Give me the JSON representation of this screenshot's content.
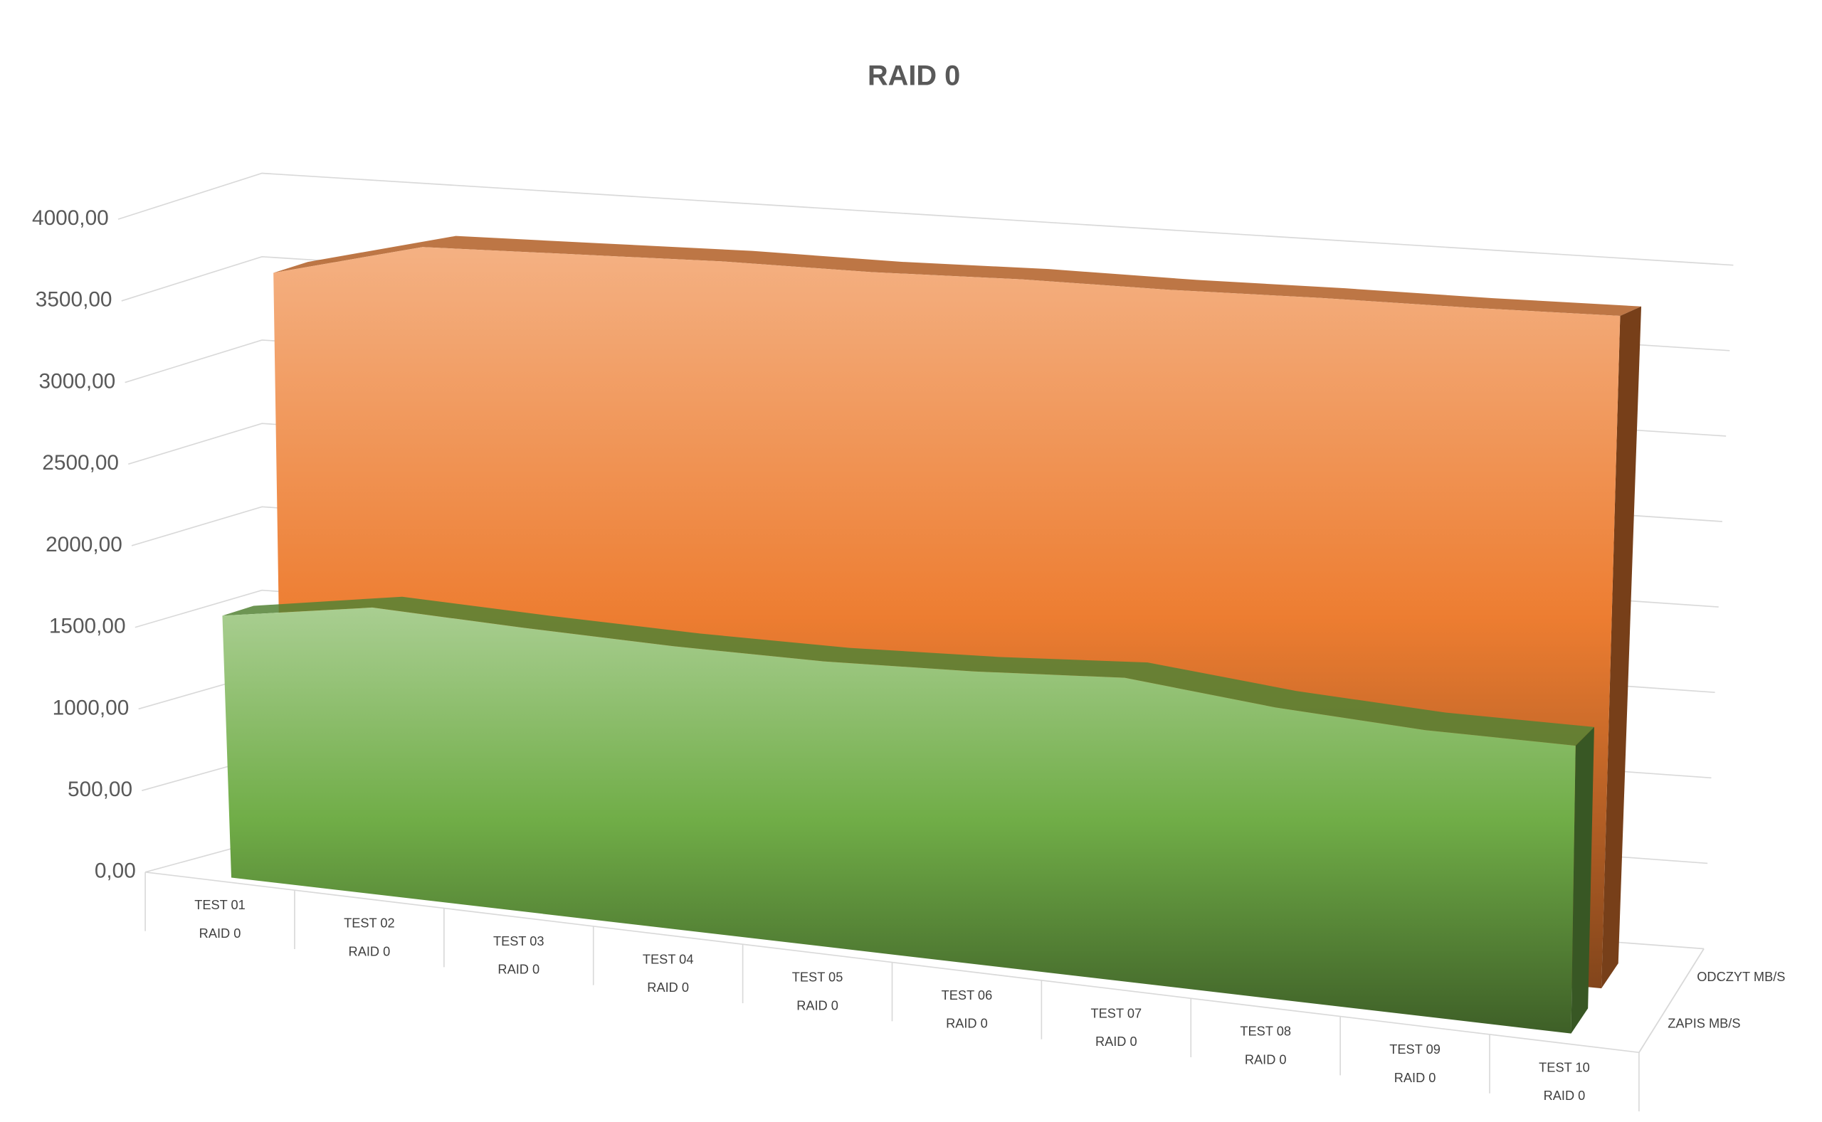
{
  "chart_data": {
    "type": "area3d",
    "title": "RAID 0",
    "categories": [
      "TEST 01",
      "TEST 02",
      "TEST 03",
      "TEST 04",
      "TEST 05",
      "TEST 06",
      "TEST 07",
      "TEST 08",
      "TEST 09",
      "TEST 10"
    ],
    "category_sublabels": [
      "RAID 0",
      "RAID 0",
      "RAID 0",
      "RAID 0",
      "RAID 0",
      "RAID 0",
      "RAID 0",
      "RAID 0",
      "RAID 0",
      "RAID 0"
    ],
    "series": [
      {
        "name": "ODCZYT MB/S",
        "color": "#ED7D31",
        "values": [
          3550,
          3760,
          3770,
          3780,
          3770,
          3780,
          3770,
          3775,
          3770,
          3775
        ]
      },
      {
        "name": "ZAPIS MB/S",
        "color": "#70AD47",
        "values": [
          1590,
          1720,
          1680,
          1650,
          1640,
          1660,
          1700,
          1610,
          1560,
          1550
        ]
      }
    ],
    "ylim": [
      0,
      4000
    ],
    "yticks": [
      {
        "value": 0,
        "label": "0,00"
      },
      {
        "value": 500,
        "label": "500,00"
      },
      {
        "value": 1000,
        "label": "1000,00"
      },
      {
        "value": 1500,
        "label": "1500,00"
      },
      {
        "value": 2000,
        "label": "2000,00"
      },
      {
        "value": 2500,
        "label": "2500,00"
      },
      {
        "value": 3000,
        "label": "3000,00"
      },
      {
        "value": 3500,
        "label": "3500,00"
      },
      {
        "value": 4000,
        "label": "4000,00"
      }
    ],
    "grid": true
  }
}
